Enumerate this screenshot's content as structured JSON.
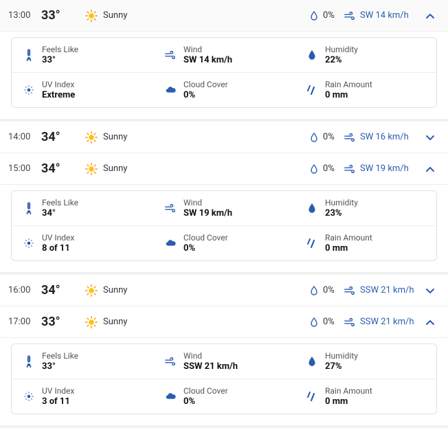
{
  "colors": {
    "accent": "#2a5db0",
    "text": "#222222",
    "text_muted": "#555555",
    "border": "#e2e2e2",
    "sun": "#ffc107",
    "sun_ray": "#ff9800"
  },
  "labels": {
    "feels_like": "Feels Like",
    "wind": "Wind",
    "humidity": "Humidity",
    "uv_index": "UV Index",
    "cloud_cover": "Cloud Cover",
    "rain_amount": "Rain Amount"
  },
  "hours": [
    {
      "time": "13:00",
      "temp": "33°",
      "condition": "Sunny",
      "precip": "0%",
      "wind": "SW 14 km/h",
      "expanded": true,
      "details": {
        "feels_like": "33°",
        "wind": "SW 14 km/h",
        "humidity": "22%",
        "uv": "Extreme",
        "cloud": "0%",
        "rain": "0 mm"
      }
    },
    {
      "time": "14:00",
      "temp": "34°",
      "condition": "Sunny",
      "precip": "0%",
      "wind": "SW 16 km/h",
      "expanded": false
    },
    {
      "time": "15:00",
      "temp": "34°",
      "condition": "Sunny",
      "precip": "0%",
      "wind": "SW 19 km/h",
      "expanded": true,
      "details": {
        "feels_like": "34°",
        "wind": "SW 19 km/h",
        "humidity": "23%",
        "uv": "8 of 11",
        "cloud": "0%",
        "rain": "0 mm"
      }
    },
    {
      "time": "16:00",
      "temp": "34°",
      "condition": "Sunny",
      "precip": "0%",
      "wind": "SSW 21 km/h",
      "expanded": false
    },
    {
      "time": "17:00",
      "temp": "33°",
      "condition": "Sunny",
      "precip": "0%",
      "wind": "SSW 21 km/h",
      "expanded": true,
      "details": {
        "feels_like": "33°",
        "wind": "SSW 21 km/h",
        "humidity": "27%",
        "uv": "3 of 11",
        "cloud": "0%",
        "rain": "0 mm"
      }
    }
  ]
}
